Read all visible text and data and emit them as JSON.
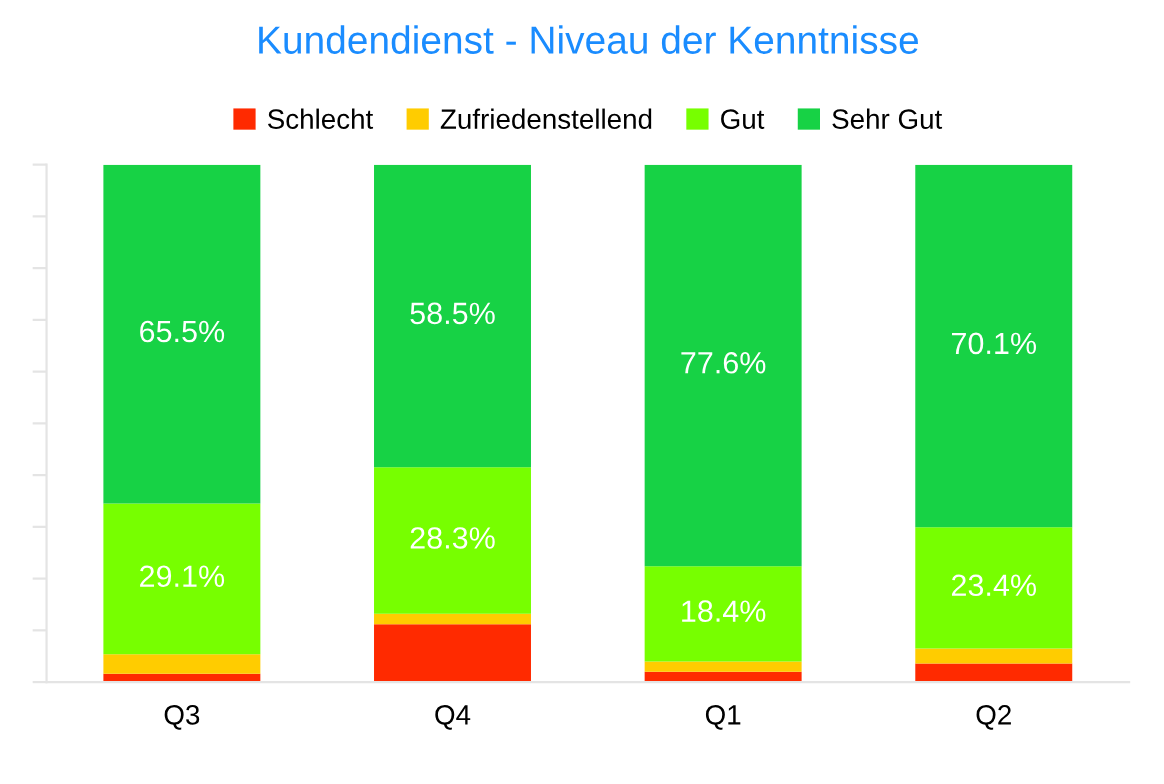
{
  "chart_data": {
    "type": "bar",
    "title": "Kundendienst - Niveau der Kenntnisse",
    "categories": [
      "Q3",
      "Q4",
      "Q1",
      "Q2"
    ],
    "stacked": true,
    "legend": "top",
    "ylim": [
      0,
      100
    ],
    "yticks": [
      {
        "value": 0,
        "label": null
      },
      {
        "value": 10,
        "label": null
      },
      {
        "value": 20,
        "label": null
      },
      {
        "value": 30,
        "label": null
      },
      {
        "value": 40,
        "label": null
      },
      {
        "value": 50,
        "label": null
      },
      {
        "value": 60,
        "label": null
      },
      {
        "value": 70,
        "label": null
      },
      {
        "value": 80,
        "label": null
      },
      {
        "value": 90,
        "label": null
      },
      {
        "value": 100,
        "label": null
      }
    ],
    "series": [
      {
        "name": "Schlecht",
        "color": "#ff2a00",
        "values": [
          1.6,
          11.2,
          2.0,
          3.6
        ]
      },
      {
        "name": "Zufriedenstellend",
        "color": "#ffcc00",
        "values": [
          3.8,
          2.0,
          2.0,
          2.9
        ]
      },
      {
        "name": "Gut",
        "color": "#77ff00",
        "values": [
          29.1,
          28.3,
          18.4,
          23.4
        ],
        "value_labels": [
          "29.1%",
          "28.3%",
          "18.4%",
          "23.4%"
        ]
      },
      {
        "name": "Sehr Gut",
        "color": "#17d245",
        "values": [
          65.5,
          58.5,
          77.6,
          70.1
        ],
        "value_labels": [
          "65.5%",
          "58.5%",
          "77.6%",
          "70.1%"
        ]
      }
    ]
  }
}
